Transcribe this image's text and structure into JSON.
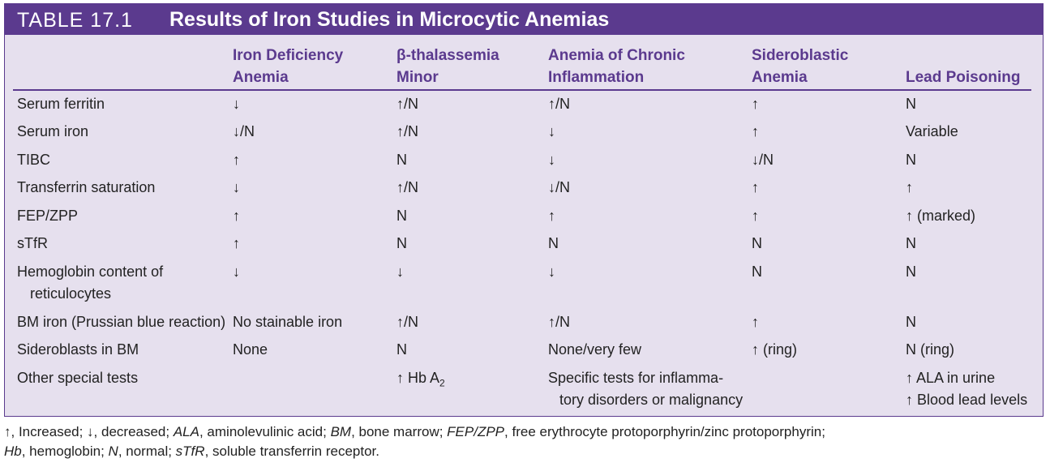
{
  "title": {
    "label": "TABLE 17.1",
    "text": "Results of Iron Studies in Microcytic Anemias"
  },
  "columns": [
    [
      "Iron Deficiency",
      "Anemia"
    ],
    [
      "β-thalassemia",
      "Minor"
    ],
    [
      "Anemia of Chronic",
      "Inflammation"
    ],
    [
      "Sideroblastic",
      "Anemia"
    ],
    [
      "",
      "Lead Poisoning"
    ]
  ],
  "rows": [
    {
      "label": [
        "Serum ferritin"
      ],
      "cells": [
        [
          "↓"
        ],
        [
          "↑/N"
        ],
        [
          "↑/N"
        ],
        [
          "↑"
        ],
        [
          "N"
        ]
      ]
    },
    {
      "label": [
        "Serum iron"
      ],
      "cells": [
        [
          "↓/N"
        ],
        [
          "↑/N"
        ],
        [
          "↓"
        ],
        [
          "↑"
        ],
        [
          "Variable"
        ]
      ]
    },
    {
      "label": [
        "TIBC"
      ],
      "cells": [
        [
          "↑"
        ],
        [
          "N"
        ],
        [
          "↓"
        ],
        [
          "↓/N"
        ],
        [
          "N"
        ]
      ]
    },
    {
      "label": [
        "Transferrin saturation"
      ],
      "cells": [
        [
          "↓"
        ],
        [
          "↑/N"
        ],
        [
          "↓/N"
        ],
        [
          "↑"
        ],
        [
          "↑"
        ]
      ]
    },
    {
      "label": [
        "FEP/ZPP"
      ],
      "cells": [
        [
          "↑"
        ],
        [
          "N"
        ],
        [
          "↑"
        ],
        [
          "↑"
        ],
        [
          "↑ (marked)"
        ]
      ]
    },
    {
      "label": [
        "sTfR"
      ],
      "cells": [
        [
          "↑"
        ],
        [
          "N"
        ],
        [
          "N"
        ],
        [
          "N"
        ],
        [
          "N"
        ]
      ]
    },
    {
      "label": [
        "Hemoglobin content of",
        "reticulocytes"
      ],
      "cells": [
        [
          "↓"
        ],
        [
          "↓"
        ],
        [
          "↓"
        ],
        [
          "N"
        ],
        [
          "N"
        ]
      ]
    },
    {
      "label": [
        "BM iron (Prussian blue reaction)"
      ],
      "cells": [
        [
          "No stainable iron"
        ],
        [
          "↑/N"
        ],
        [
          "↑/N"
        ],
        [
          "↑"
        ],
        [
          "N"
        ]
      ]
    },
    {
      "label": [
        "Sideroblasts in BM"
      ],
      "cells": [
        [
          "None"
        ],
        [
          "N"
        ],
        [
          "None/very few"
        ],
        [
          "↑ (ring)"
        ],
        [
          "N (ring)"
        ]
      ]
    },
    {
      "label": [
        "Other special tests"
      ],
      "cells": [
        [
          ""
        ],
        [
          "↑ Hb A"
        ],
        [
          "Specific tests for inflamma-",
          "tory disorders or malignancy"
        ],
        [
          ""
        ],
        [
          "↑ ALA in urine",
          "↑ Blood lead levels"
        ]
      ]
    }
  ],
  "hb_subscript": "2",
  "footnote": {
    "p1": "↑, Increased; ↓, decreased; ",
    "ala": "ALA",
    "p2": ", aminolevulinic acid; ",
    "bm": "BM",
    "p3": ", bone marrow; ",
    "fep": "FEP/ZPP",
    "p4": ", free erythrocyte protoporphyrin/zinc protoporphyrin;",
    "hb": "Hb",
    "p5": ", hemoglobin; ",
    "n": "N",
    "p6": ", normal; ",
    "stfr": "sTfR",
    "p7": ", soluble transferrin receptor."
  }
}
